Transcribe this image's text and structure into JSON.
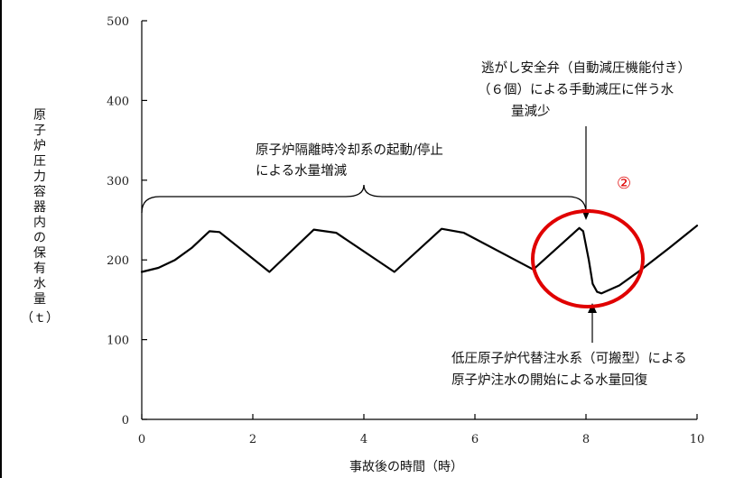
{
  "chart_data": {
    "type": "line",
    "title": "",
    "xlabel": "事故後の時間（時）",
    "ylabel_chars": [
      "原",
      "子",
      "炉",
      "圧",
      "力",
      "容",
      "器",
      "内",
      "の",
      "保",
      "有",
      "水",
      "量"
    ],
    "ylabel_unit": "（ｔ）",
    "xlim": [
      0,
      10
    ],
    "ylim": [
      0,
      500
    ],
    "xticks": [
      0,
      2,
      4,
      6,
      8,
      10
    ],
    "yticks": [
      0,
      100,
      200,
      300,
      400,
      500
    ],
    "grid": false,
    "series": [
      {
        "color": "#000000",
        "x": [
          0,
          0.3,
          0.6,
          0.9,
          1.22,
          1.4,
          2.3,
          3.1,
          3.5,
          4.55,
          5.4,
          5.8,
          7.05,
          7.88,
          7.95,
          8.05,
          8.12,
          8.2,
          8.28,
          8.6,
          9.0,
          9.5,
          10.0
        ],
        "y": [
          185,
          190,
          200,
          215,
          236,
          235,
          185,
          238,
          234,
          185,
          239,
          234,
          188,
          240,
          236,
          200,
          170,
          160,
          158,
          168,
          188,
          215,
          243
        ]
      }
    ],
    "annotations": {
      "bracket_label_line1": "原子炉隔離時冷却系の起動/停止",
      "bracket_label_line2": "による水量増減",
      "top_right_line1": "逃がし安全弁（自動減圧機能付き）",
      "top_right_line2": "（６個）による手動減圧に伴う水",
      "top_right_line3": "量減少",
      "bottom_right_line1": "低圧原子炉代替注水系（可搬型）による",
      "bottom_right_line2": "原子炉注水の開始による水量回復",
      "circle_number": "②"
    },
    "highlight_color": "#e00000"
  }
}
